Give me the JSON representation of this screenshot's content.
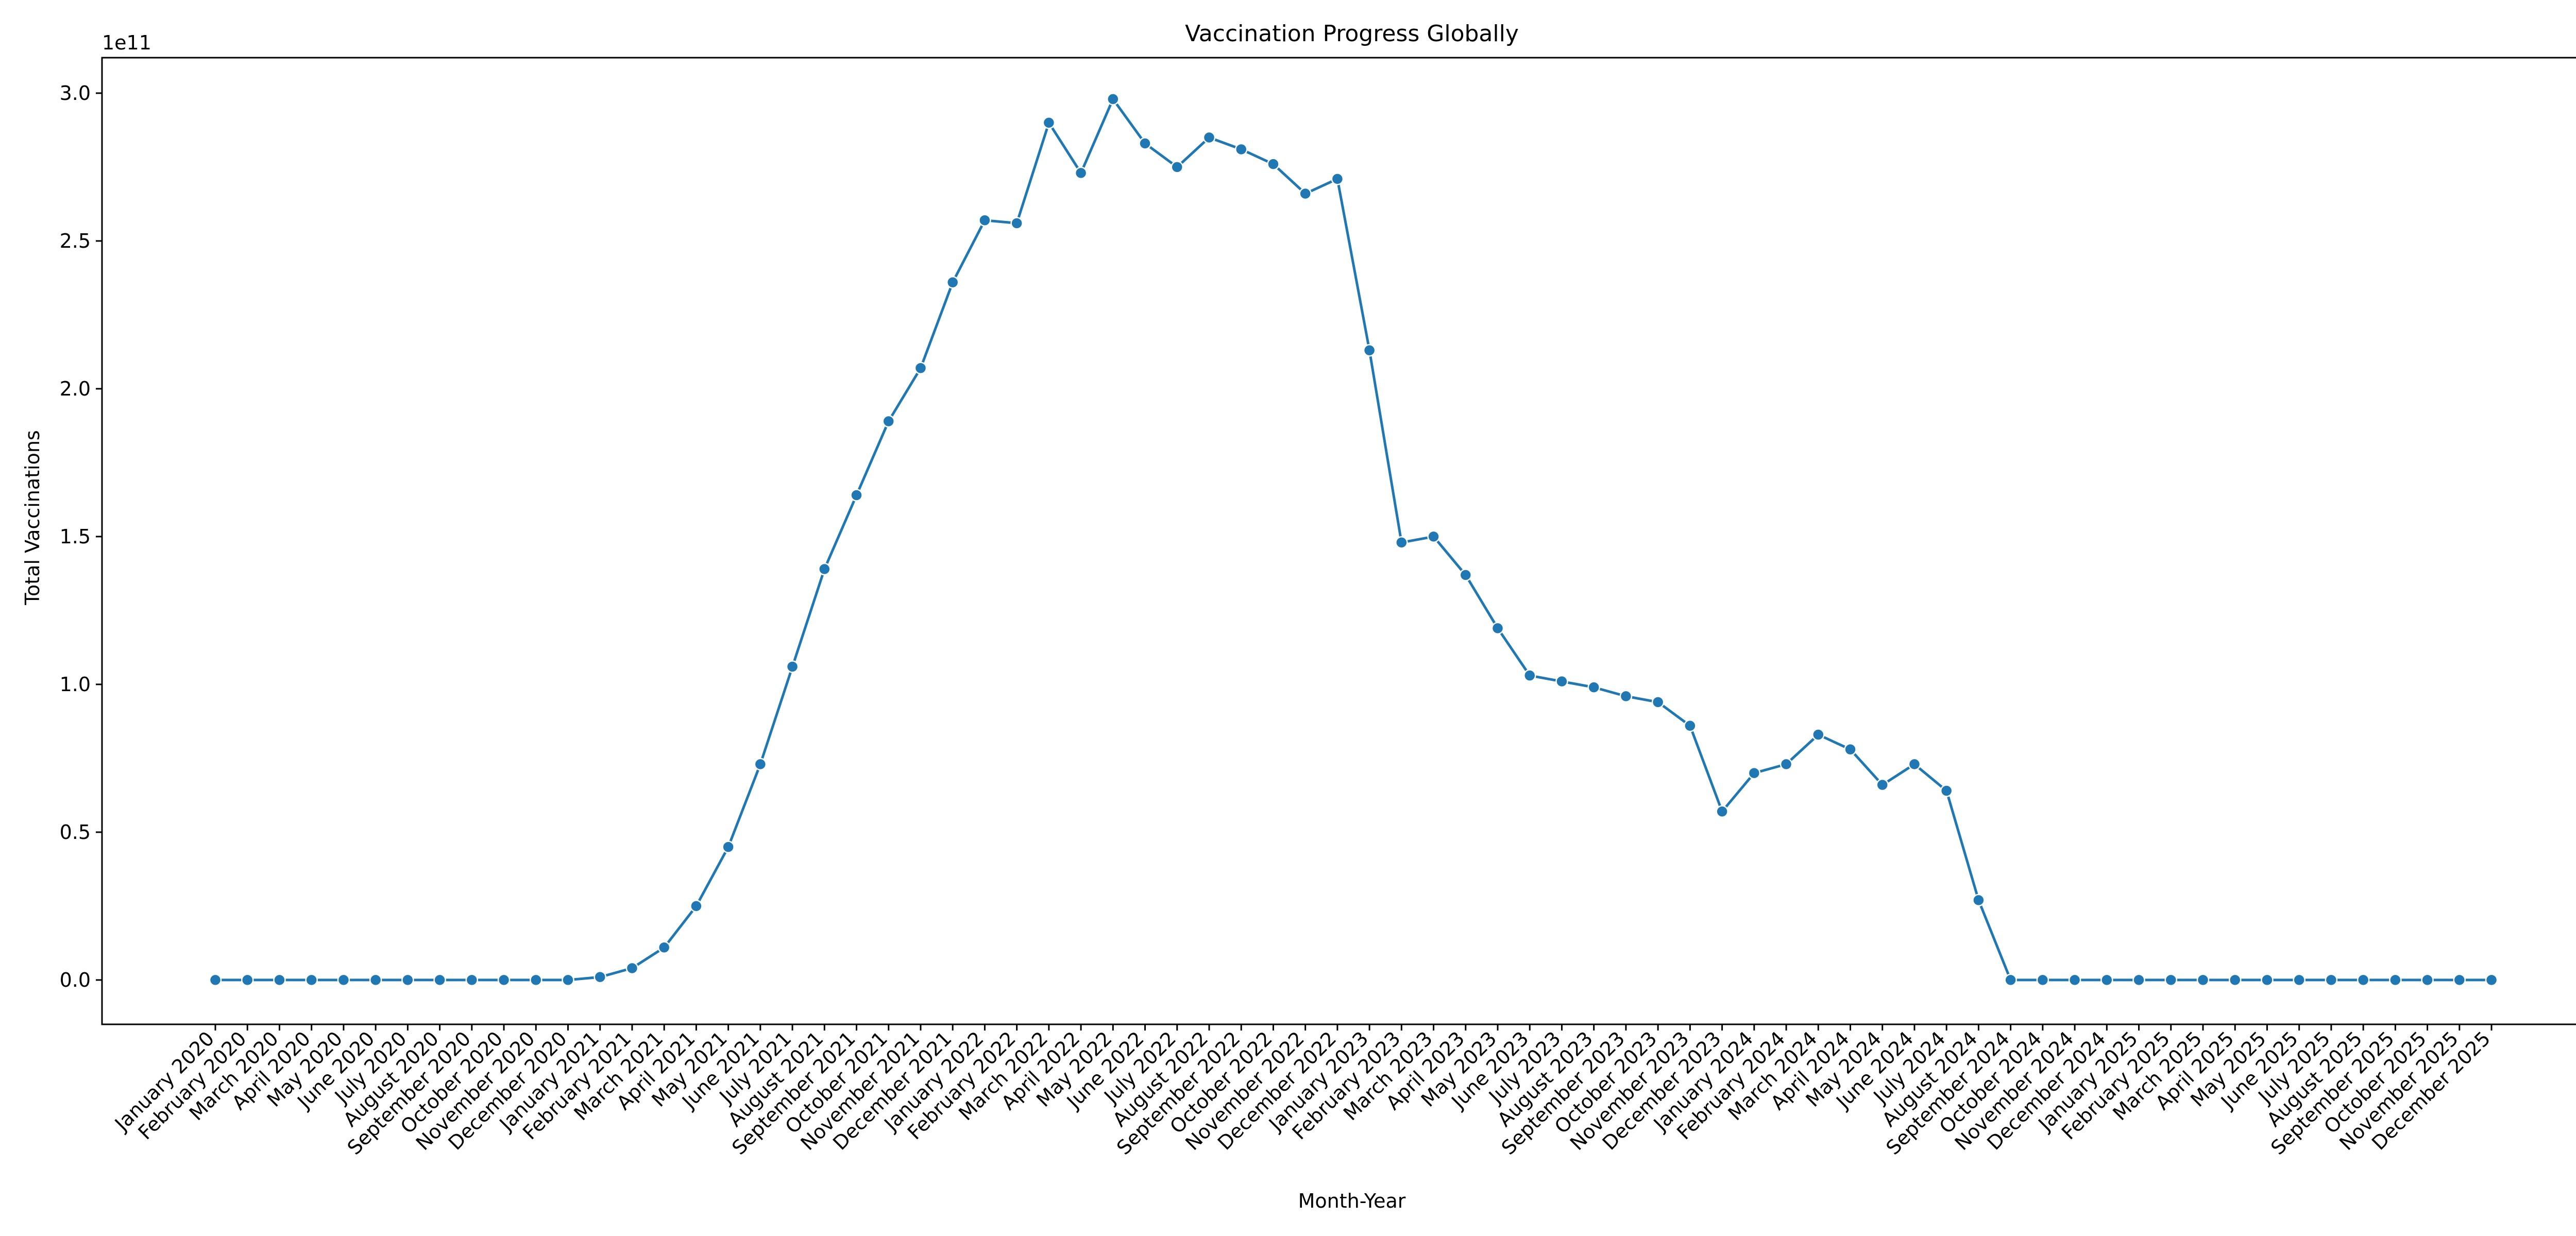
{
  "chart_data": {
    "type": "line",
    "title": "Vaccination Progress Globally",
    "xlabel": "Month-Year",
    "ylabel": "Total Vaccinations",
    "y_offset_label": "1e11",
    "ylim": [
      -0.15,
      3.12
    ],
    "y_ticks": [
      0.0,
      0.5,
      1.0,
      1.5,
      2.0,
      2.5,
      3.0
    ],
    "y_tick_labels": [
      "0.0",
      "0.5",
      "1.0",
      "1.5",
      "2.0",
      "2.5",
      "3.0"
    ],
    "grid": false,
    "legend": "none",
    "color": "#1f77b4",
    "categories": [
      "January 2020",
      "February 2020",
      "March 2020",
      "April 2020",
      "May 2020",
      "June 2020",
      "July 2020",
      "August 2020",
      "September 2020",
      "October 2020",
      "November 2020",
      "December 2020",
      "January 2021",
      "February 2021",
      "March 2021",
      "April 2021",
      "May 2021",
      "June 2021",
      "July 2021",
      "August 2021",
      "September 2021",
      "October 2021",
      "November 2021",
      "December 2021",
      "January 2022",
      "February 2022",
      "March 2022",
      "April 2022",
      "May 2022",
      "June 2022",
      "July 2022",
      "August 2022",
      "September 2022",
      "October 2022",
      "November 2022",
      "December 2022",
      "January 2023",
      "February 2023",
      "March 2023",
      "April 2023",
      "May 2023",
      "June 2023",
      "July 2023",
      "August 2023",
      "September 2023",
      "October 2023",
      "November 2023",
      "December 2023",
      "January 2024",
      "February 2024",
      "March 2024",
      "April 2024",
      "May 2024",
      "June 2024",
      "July 2024",
      "August 2024",
      "September 2024",
      "October 2024",
      "November 2024",
      "December 2024",
      "January 2025",
      "February 2025",
      "March 2025",
      "April 2025",
      "May 2025",
      "June 2025",
      "July 2025",
      "August 2025",
      "September 2025",
      "October 2025",
      "November 2025",
      "December 2025"
    ],
    "values": [
      0,
      0,
      0,
      0,
      0,
      0,
      0,
      0,
      0,
      0,
      0,
      0,
      0.01,
      0.04,
      0.11,
      0.25,
      0.45,
      0.73,
      1.06,
      1.39,
      1.64,
      1.89,
      2.07,
      2.36,
      2.57,
      2.56,
      2.9,
      2.73,
      2.98,
      2.83,
      2.75,
      2.85,
      2.81,
      2.76,
      2.66,
      2.71,
      2.13,
      1.48,
      1.5,
      1.37,
      1.19,
      1.03,
      1.01,
      0.99,
      0.96,
      0.94,
      0.86,
      0.57,
      0.7,
      0.73,
      0.83,
      0.78,
      0.66,
      0.73,
      0.64,
      0.27,
      0,
      0,
      0,
      0,
      0,
      0,
      0,
      0,
      0,
      0,
      0,
      0,
      0,
      0,
      0,
      0
    ]
  }
}
